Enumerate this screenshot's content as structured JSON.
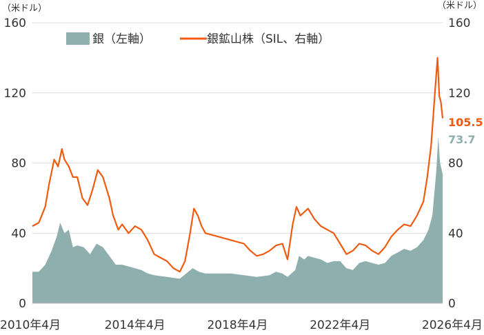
{
  "chart_data": {
    "type": "area",
    "left_axis": {
      "unit": "（米ドル）",
      "ticks": [
        "0",
        "40",
        "80",
        "120",
        "160"
      ],
      "ylim": [
        0,
        160
      ]
    },
    "right_axis": {
      "unit": "（米ドル）",
      "ticks": [
        "0",
        "40",
        "80",
        "120",
        "160"
      ],
      "ylim": [
        0,
        160
      ]
    },
    "x_ticks": [
      "2010年4月",
      "2014年4月",
      "2018年4月",
      "2022年4月",
      "2026年4月"
    ],
    "x_tick_years": [
      2010.25,
      2014.25,
      2018.25,
      2022.25,
      2026.25
    ],
    "xlim": [
      2010.25,
      2026.25
    ],
    "grid": true,
    "legend_position": "top",
    "series": [
      {
        "name": "銀（左軸）",
        "axis": "left",
        "kind": "area",
        "color": "#8fafae",
        "x": [
          2010.25,
          2010.5,
          2010.75,
          2011.0,
          2011.2,
          2011.33,
          2011.5,
          2011.67,
          2011.83,
          2012.0,
          2012.25,
          2012.5,
          2012.75,
          2013.0,
          2013.25,
          2013.5,
          2013.75,
          2014.0,
          2014.25,
          2014.5,
          2014.75,
          2015.0,
          2015.5,
          2016.0,
          2016.25,
          2016.5,
          2016.75,
          2017.0,
          2017.5,
          2018.0,
          2018.5,
          2019.0,
          2019.5,
          2019.75,
          2020.0,
          2020.2,
          2020.5,
          2020.65,
          2020.85,
          2021.0,
          2021.25,
          2021.5,
          2021.75,
          2022.0,
          2022.25,
          2022.5,
          2022.75,
          2023.0,
          2023.25,
          2023.5,
          2023.75,
          2024.0,
          2024.25,
          2024.5,
          2024.75,
          2025.0,
          2025.25,
          2025.5,
          2025.7,
          2025.85,
          2026.0,
          2026.08,
          2026.15,
          2026.25
        ],
        "values": [
          18,
          18,
          22,
          30,
          38,
          46,
          40,
          42,
          32,
          33,
          32,
          28,
          34,
          32,
          27,
          22,
          22,
          21,
          20,
          19,
          17,
          16,
          15,
          14,
          17,
          20,
          18,
          17,
          17,
          17,
          16,
          15,
          16,
          18,
          17,
          15,
          19,
          27,
          25,
          27,
          26,
          25,
          23,
          24,
          24,
          20,
          19,
          23,
          24,
          23,
          22,
          23,
          27,
          29,
          31,
          30,
          32,
          36,
          42,
          50,
          75,
          95,
          80,
          73.7
        ]
      },
      {
        "name": "銀鉱山株（SIL、右軸）",
        "axis": "right",
        "kind": "line",
        "color": "#f05a0f",
        "x": [
          2010.25,
          2010.5,
          2010.75,
          2010.9,
          2011.1,
          2011.25,
          2011.4,
          2011.5,
          2011.67,
          2011.83,
          2012.0,
          2012.2,
          2012.4,
          2012.6,
          2012.8,
          2013.0,
          2013.25,
          2013.4,
          2013.6,
          2013.75,
          2014.0,
          2014.25,
          2014.5,
          2014.75,
          2015.0,
          2015.25,
          2015.5,
          2015.75,
          2016.0,
          2016.2,
          2016.4,
          2016.55,
          2016.7,
          2016.85,
          2017.0,
          2017.5,
          2018.0,
          2018.5,
          2018.75,
          2019.0,
          2019.25,
          2019.5,
          2019.75,
          2020.0,
          2020.2,
          2020.4,
          2020.55,
          2020.7,
          2020.85,
          2021.0,
          2021.25,
          2021.5,
          2021.75,
          2022.0,
          2022.25,
          2022.5,
          2022.75,
          2023.0,
          2023.25,
          2023.5,
          2023.75,
          2024.0,
          2024.25,
          2024.5,
          2024.75,
          2025.0,
          2025.25,
          2025.5,
          2025.65,
          2025.8,
          2025.95,
          2026.05,
          2026.12,
          2026.18,
          2026.25
        ],
        "values": [
          44,
          46,
          55,
          68,
          82,
          78,
          88,
          82,
          78,
          72,
          72,
          60,
          56,
          65,
          76,
          72,
          60,
          50,
          42,
          45,
          40,
          44,
          42,
          36,
          28,
          26,
          24,
          20,
          18,
          24,
          40,
          54,
          50,
          44,
          40,
          38,
          36,
          34,
          30,
          27,
          28,
          30,
          33,
          34,
          25,
          45,
          55,
          50,
          52,
          54,
          48,
          44,
          42,
          40,
          34,
          28,
          30,
          34,
          33,
          30,
          28,
          32,
          38,
          42,
          45,
          44,
          50,
          58,
          72,
          90,
          120,
          140,
          118,
          115,
          105.5
        ]
      }
    ],
    "end_labels": [
      {
        "series": "silver_miners",
        "text": "105.5",
        "color": "#f05a0f"
      },
      {
        "series": "silver",
        "text": "73.7",
        "color": "#8fafae"
      }
    ]
  }
}
